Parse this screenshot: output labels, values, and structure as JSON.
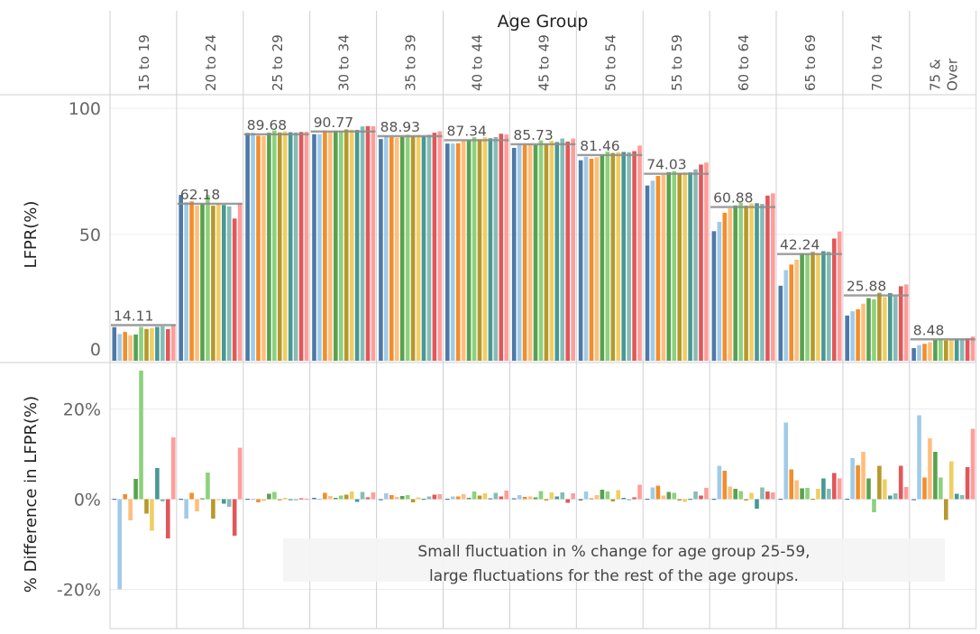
{
  "chart_data": {
    "type": "bar",
    "title": "Age Group",
    "categories": [
      "15 to 19",
      "20 to 24",
      "25 to 29",
      "30 to 34",
      "35 to 39",
      "40 to 44",
      "45 to 49",
      "50 to 54",
      "55 to 59",
      "60 to 64",
      "65 to 69",
      "70 to 74",
      "75 & Over"
    ],
    "category_lines": [
      [
        "15 to 19"
      ],
      [
        "20 to 24"
      ],
      [
        "25 to 29"
      ],
      [
        "30 to 34"
      ],
      [
        "35 to 39"
      ],
      [
        "40 to 44"
      ],
      [
        "45 to 49"
      ],
      [
        "50 to 54"
      ],
      [
        "55 to 59"
      ],
      [
        "60 to 64"
      ],
      [
        "65 to 69"
      ],
      [
        "70 to 74"
      ],
      [
        "75 &",
        "Over"
      ]
    ],
    "bars_per_group": 12,
    "bar_colors": [
      "#4e79a7",
      "#a0cbe8",
      "#f28e2b",
      "#ffbe7d",
      "#59a14f",
      "#8cd17d",
      "#b6992d",
      "#f1ce63",
      "#499894",
      "#86bcb6",
      "#e15759",
      "#ff9d9a"
    ],
    "top_panel": {
      "ylabel": "LFPR(%)",
      "ylim": [
        0,
        100
      ],
      "yticks": [
        0,
        50,
        100
      ],
      "reference_line_color": "#8c8c8c",
      "averages": [
        14.11,
        62.18,
        89.68,
        90.77,
        88.93,
        87.34,
        85.73,
        81.46,
        74.03,
        60.88,
        42.24,
        25.88,
        8.48
      ],
      "average_labels": [
        "14.11",
        "62.18",
        "89.68",
        "90.77",
        "88.93",
        "87.34",
        "85.73",
        "81.46",
        "74.03",
        "60.88",
        "42.24",
        "25.88",
        "8.48"
      ],
      "values": [
        [
          13.3,
          10.6,
          11.4,
          10.1,
          10.4,
          13.4,
          12.6,
          12.9,
          13.4,
          13.6,
          12.5,
          14.3
        ],
        [
          65.7,
          62.8,
          63.1,
          61.5,
          62.3,
          65.6,
          61.4,
          62.3,
          61.7,
          61.1,
          56.3,
          62.5
        ],
        [
          90.2,
          90.3,
          89.1,
          89.0,
          90.3,
          91.2,
          90.4,
          90.8,
          90.5,
          90.4,
          90.6,
          90.7
        ],
        [
          89.7,
          89.7,
          91.0,
          90.8,
          91.0,
          91.0,
          91.6,
          91.5,
          91.4,
          92.8,
          92.9,
          92.9
        ],
        [
          87.8,
          89.0,
          88.6,
          88.3,
          88.7,
          89.5,
          89.1,
          89.4,
          89.0,
          89.5,
          90.3,
          90.9
        ],
        [
          86.0,
          86.0,
          86.1,
          87.0,
          87.4,
          88.5,
          87.7,
          88.5,
          88.1,
          88.6,
          89.9,
          89.6
        ],
        [
          84.3,
          85.5,
          85.5,
          85.9,
          85.6,
          87.3,
          86.0,
          87.1,
          86.6,
          88.0,
          86.8,
          88.0
        ],
        [
          79.4,
          80.8,
          80.0,
          80.6,
          81.6,
          82.8,
          82.3,
          82.6,
          82.7,
          82.6,
          83.0,
          85.2
        ],
        [
          69.4,
          71.3,
          73.2,
          73.6,
          74.7,
          75.1,
          74.4,
          74.6,
          74.6,
          75.8,
          77.7,
          78.5
        ],
        [
          51.3,
          55.0,
          58.6,
          60.3,
          61.5,
          62.6,
          61.4,
          62.3,
          62.4,
          62.1,
          65.4,
          66.3
        ],
        [
          29.7,
          35.9,
          38.1,
          40.0,
          42.5,
          42.5,
          43.1,
          42.5,
          43.4,
          43.2,
          48.4,
          51.2
        ],
        [
          17.9,
          19.6,
          20.4,
          22.6,
          24.8,
          24.3,
          26.9,
          25.2,
          26.8,
          25.5,
          29.5,
          30.2
        ],
        [
          5.0,
          6.2,
          6.7,
          7.3,
          8.3,
          8.5,
          8.0,
          8.5,
          8.5,
          8.5,
          8.8,
          9.6
        ]
      ]
    },
    "bottom_panel": {
      "ylabel": "% Difference in LFPR(%)",
      "ylim": [
        -24,
        28
      ],
      "yticks": [
        -20,
        0,
        20
      ],
      "ytick_labels": [
        "-20%",
        "0%",
        "20%"
      ],
      "values": [
        [
          0.1,
          -20.0,
          1.1,
          -4.7,
          4.5,
          28.5,
          -3.2,
          -7.0,
          6.9,
          -0.5,
          -8.7,
          13.7
        ],
        [
          0.1,
          -4.3,
          1.4,
          -2.7,
          0.2,
          5.9,
          -4.3,
          -0.1,
          -1.0,
          -1.7,
          -8.1,
          11.4
        ],
        [
          0.1,
          0.1,
          -0.7,
          -0.4,
          1.2,
          1.6,
          -0.1,
          0.3,
          -0.1,
          -0.2,
          0.2,
          0.1
        ],
        [
          0.3,
          0.1,
          1.4,
          0.7,
          0.3,
          0.8,
          1.0,
          1.7,
          -0.6,
          1.6,
          0.4,
          1.5
        ],
        [
          -0.2,
          1.3,
          0.9,
          0.5,
          0.7,
          0.9,
          -0.7,
          0.4,
          0.1,
          0.6,
          1.0,
          1.1
        ],
        [
          0.1,
          0.6,
          0.6,
          1.1,
          0.3,
          1.7,
          0.8,
          1.3,
          0.2,
          1.4,
          0.6,
          1.9
        ],
        [
          0.2,
          0.9,
          0.5,
          0.6,
          0.4,
          1.8,
          -0.3,
          1.5,
          0.6,
          1.5,
          -0.8,
          1.3
        ],
        [
          -0.3,
          1.7,
          0.2,
          0.9,
          2.1,
          1.7,
          -0.5,
          2.0,
          0.3,
          -0.2,
          0.4,
          3.2
        ],
        [
          0.1,
          2.6,
          3.0,
          0.8,
          1.6,
          1.4,
          -0.3,
          -0.6,
          0.1,
          1.7,
          0.8,
          2.5
        ],
        [
          0.1,
          7.4,
          6.3,
          2.8,
          2.3,
          1.8,
          -0.3,
          1.4,
          -2.1,
          2.6,
          1.7,
          1.5
        ],
        [
          0.1,
          17.0,
          6.6,
          4.2,
          2.4,
          2.5,
          0.1,
          2.3,
          4.6,
          2.3,
          5.8,
          4.6
        ],
        [
          0.1,
          9.1,
          7.5,
          10.5,
          4.6,
          -2.9,
          7.4,
          4.4,
          0.8,
          1.3,
          7.4,
          2.7
        ],
        [
          -0.2,
          18.6,
          4.8,
          13.5,
          10.5,
          4.8,
          -4.6,
          8.4,
          1.2,
          0.9,
          7.1,
          15.6
        ]
      ]
    },
    "annotation": {
      "lines": [
        "Small fluctuation in % change for age group 25-59,",
        "large fluctuations for the rest of the age groups."
      ]
    },
    "grid": true,
    "legend": "none"
  }
}
